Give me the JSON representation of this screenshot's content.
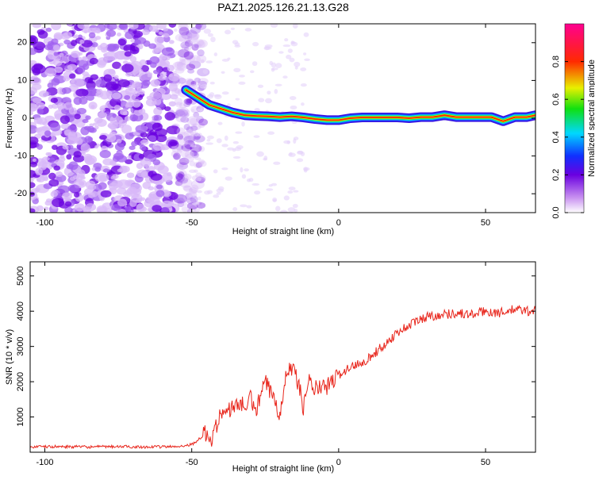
{
  "chart_title": "PAZ1.2025.126.21.13.G28",
  "colors": {
    "snr_line": "#e8261c",
    "noise_purple": "#8a2be2",
    "background": "#ffffff"
  },
  "chart_data": [
    {
      "type": "heatmap",
      "title": "PAZ1.2025.126.21.13.G28",
      "xlabel": "Height of straight line (km)",
      "ylabel": "Frequency (Hz)",
      "xlim": [
        -105,
        67
      ],
      "ylim": [
        -25,
        25
      ],
      "xticks": [
        -100,
        -50,
        0,
        50
      ],
      "yticks": [
        -20,
        -10,
        0,
        10,
        20
      ],
      "x_tick_labels": [
        "-100",
        "-50",
        "0",
        "50"
      ],
      "y_tick_labels": [
        "-20",
        "-10",
        "0",
        "10",
        "20"
      ],
      "colorbar": {
        "label": "Normalized spectral amplitude",
        "range": [
          0,
          1
        ],
        "ticks": [
          0.0,
          0.2,
          0.4,
          0.6,
          0.8
        ],
        "tick_labels": [
          "0.0",
          "0.2",
          "0.4",
          "0.6",
          "0.8"
        ],
        "colormap": "rainbow (white-purple-blue-cyan-green-yellow-red-magenta)"
      },
      "noise_region_x": [
        -105,
        -52
      ],
      "ridge": {
        "x": [
          -52,
          -48,
          -44,
          -40,
          -36,
          -32,
          -28,
          -24,
          -20,
          -16,
          -12,
          -8,
          -4,
          0,
          4,
          8,
          12,
          16,
          20,
          24,
          28,
          32,
          36,
          40,
          44,
          48,
          52,
          56,
          60,
          64,
          67
        ],
        "y": [
          7.5,
          5.5,
          3.5,
          2.5,
          1.5,
          0.8,
          0.6,
          0.5,
          0.3,
          0.5,
          0.2,
          -0.2,
          -0.5,
          -0.5,
          0.0,
          0.2,
          0.2,
          0.2,
          0.2,
          0.0,
          0.3,
          0.3,
          0.8,
          0.3,
          0.3,
          0.3,
          0.3,
          -0.8,
          0.3,
          0.3,
          0.8
        ]
      }
    },
    {
      "type": "line",
      "xlabel": "Height of straight line (km)",
      "ylabel": "SNR (10 * v/v)",
      "xlim": [
        -105,
        67
      ],
      "ylim": [
        0,
        5400
      ],
      "xticks": [
        -100,
        -50,
        0,
        50
      ],
      "yticks": [
        1000,
        2000,
        3000,
        4000,
        5000
      ],
      "x_tick_labels": [
        "-100",
        "-50",
        "0",
        "50"
      ],
      "y_tick_labels": [
        "1000",
        "2000",
        "3000",
        "4000",
        "5000"
      ],
      "series": [
        {
          "x": [
            -105,
            -95,
            -85,
            -75,
            -65,
            -55,
            -50,
            -47,
            -45,
            -44,
            -42,
            -40,
            -38,
            -35,
            -32,
            -30,
            -28,
            -25,
            -22,
            -20,
            -18,
            -15,
            -12,
            -10,
            -8,
            -5,
            -2,
            0,
            5,
            10,
            15,
            20,
            25,
            30,
            35,
            40,
            45,
            50,
            55,
            60,
            65,
            67
          ],
          "y": [
            150,
            160,
            150,
            160,
            150,
            160,
            220,
            400,
            560,
            300,
            600,
            1200,
            1100,
            1400,
            1300,
            1500,
            1200,
            2000,
            1500,
            1100,
            2300,
            2400,
            1300,
            2000,
            1800,
            1800,
            2000,
            2200,
            2450,
            2650,
            3000,
            3400,
            3650,
            3850,
            3900,
            3950,
            3900,
            4000,
            3950,
            4050,
            4000,
            4050
          ]
        }
      ]
    }
  ]
}
